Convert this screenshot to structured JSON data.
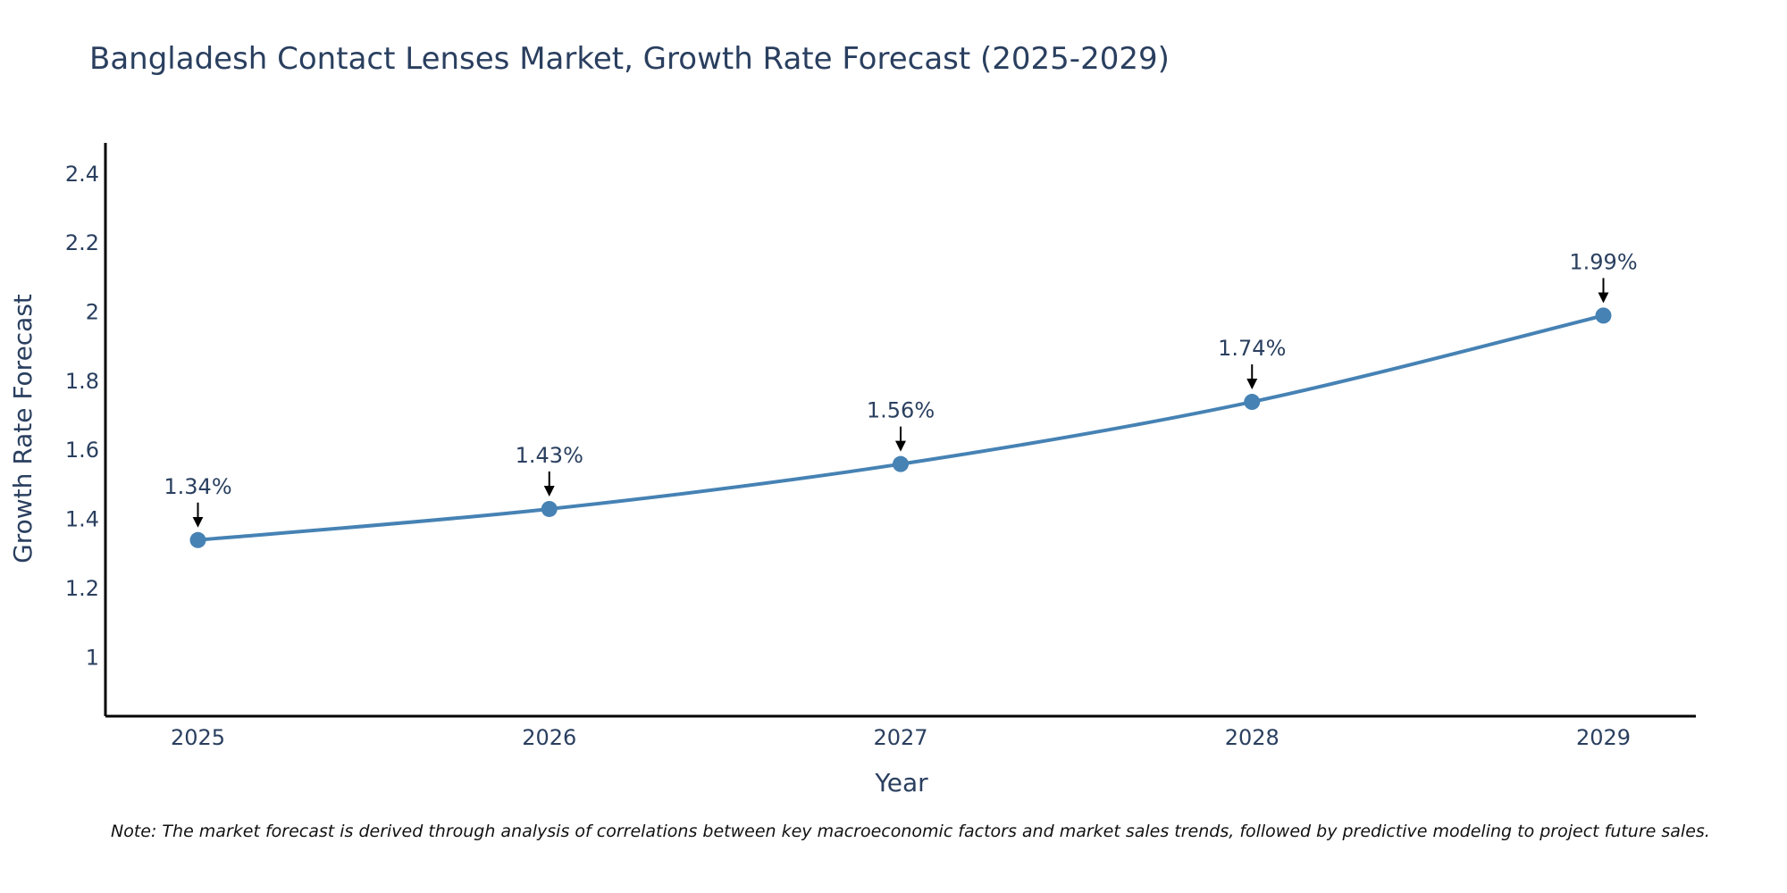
{
  "chart_data": {
    "type": "line",
    "title": "Bangladesh Contact Lenses Market, Growth Rate Forecast (2025-2029)",
    "xlabel": "Year",
    "ylabel": "Growth Rate Forecast",
    "categories": [
      "2025",
      "2026",
      "2027",
      "2028",
      "2029"
    ],
    "series": [
      {
        "name": "Growth Rate Forecast",
        "values": [
          1.34,
          1.43,
          1.56,
          1.74,
          1.99
        ],
        "color": "#4682b4"
      }
    ],
    "data_labels": [
      "1.34%",
      "1.43%",
      "1.56%",
      "1.74%",
      "1.99%"
    ],
    "ylim": [
      0.83,
      2.49
    ],
    "yticks": [
      1,
      1.2,
      1.4,
      1.6,
      1.8,
      2,
      2.2,
      2.4
    ],
    "ytick_labels": [
      "1",
      "1.2",
      "1.4",
      "1.6",
      "1.8",
      "2",
      "2.2",
      "2.4"
    ],
    "grid": false,
    "note": "Note: The market forecast is derived through analysis of correlations between key macroeconomic factors and market sales trends, followed by predictive modeling to project future sales."
  }
}
